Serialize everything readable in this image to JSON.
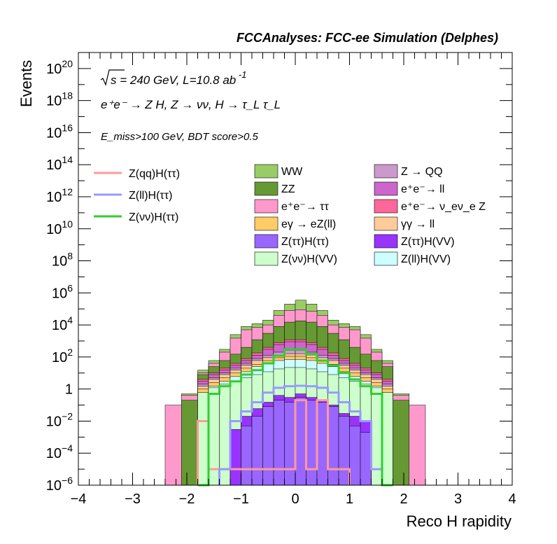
{
  "chart_data": {
    "type": "bar",
    "stacked": true,
    "title": "FCCAnalyses: FCC-ee Simulation (Delphes)",
    "annotations": {
      "sqrt_s": "s",
      "energy": "= 240 GeV, L=10.8 ab",
      "lumi_exp": "-1",
      "process": "e⁺e⁻ → Z H, Z → νν, H → τ_L τ_L",
      "selection": "E_miss>100 GeV, BDT score>0.5"
    },
    "xlabel": "Reco H rapidity",
    "ylabel": "Events",
    "xlim": [
      -4,
      4
    ],
    "ylim": [
      1e-06,
      1e+21
    ],
    "yscale": "log",
    "grid": false,
    "legend_placement": "top",
    "x_ticks": [
      "−4",
      "−3",
      "−2",
      "−1",
      "0",
      "1",
      "2",
      "3",
      "4"
    ],
    "y_ticks": [
      {
        "base": "10",
        "exp": "−6",
        "value": 1e-06
      },
      {
        "base": "10",
        "exp": "−4",
        "value": 0.0001
      },
      {
        "base": "10",
        "exp": "−2",
        "value": 0.01
      },
      {
        "base": "1",
        "exp": "",
        "value": 1
      },
      {
        "base": "10",
        "exp": "2",
        "value": 100.0
      },
      {
        "base": "10",
        "exp": "4",
        "value": 10000.0
      },
      {
        "base": "10",
        "exp": "6",
        "value": 1000000.0
      },
      {
        "base": "10",
        "exp": "8",
        "value": 100000000.0
      },
      {
        "base": "10",
        "exp": "10",
        "value": 10000000000.0
      },
      {
        "base": "10",
        "exp": "12",
        "value": 1000000000000.0
      },
      {
        "base": "10",
        "exp": "14",
        "value": 100000000000000.0
      },
      {
        "base": "10",
        "exp": "16",
        "value": 1e+16
      },
      {
        "base": "10",
        "exp": "18",
        "value": 1e+18
      },
      {
        "base": "10",
        "exp": "20",
        "value": 1e+20
      }
    ],
    "bin_edges": [
      -2.4,
      -2.1,
      -1.8,
      -1.6,
      -1.4,
      -1.2,
      -1.0,
      -0.8,
      -0.6,
      -0.4,
      -0.2,
      0.0,
      0.2,
      0.4,
      0.6,
      0.8,
      1.0,
      1.2,
      1.4,
      1.6,
      1.8,
      2.1,
      2.4
    ],
    "stack_order_bottom_to_top": [
      "Z(ττ)H(ττ)",
      "Z(ττ)H(VV)",
      "Z(νν)H(VV)",
      "Z(ll)H(VV)",
      "eγ → eZ(ll)",
      "γγ → ll",
      "Z → QQ",
      "e⁺e⁻ → ll",
      "e⁺e⁻ → ν_eν_e Z",
      "ZZ",
      "e⁺e⁻ → ττ",
      "WW"
    ],
    "stack_cumulative_tops": [
      {
        "name": "Z(ττ)H(ττ)",
        "values": [
          null,
          null,
          null,
          null,
          null,
          null,
          0.005,
          0.02,
          0.08,
          0.2,
          0.15,
          0.3,
          0.2,
          0.15,
          0.08,
          0.02,
          0.005,
          0.002,
          null,
          null,
          null,
          null
        ]
      },
      {
        "name": "Z(ττ)H(VV)",
        "values": [
          null,
          null,
          null,
          null,
          null,
          0.003,
          0.02,
          0.06,
          0.15,
          0.4,
          0.3,
          0.5,
          0.3,
          0.2,
          0.1,
          0.03,
          0.02,
          0.01,
          null,
          null,
          null,
          null
        ]
      },
      {
        "name": "Z(νν)H(VV)",
        "values": [
          null,
          null,
          0.6,
          1.2,
          2,
          3,
          5,
          8,
          12,
          18,
          22,
          22,
          18,
          12,
          8,
          5,
          3,
          2,
          1.2,
          0.6,
          null,
          null
        ]
      },
      {
        "name": "Z(ll)H(VV)",
        "values": [
          null,
          null,
          0.6,
          1.5,
          3,
          6,
          12,
          25,
          40,
          60,
          70,
          70,
          60,
          40,
          25,
          12,
          6,
          3,
          1.5,
          0.6,
          null,
          null
        ]
      },
      {
        "name": "eγ → eZ(ll)",
        "values": [
          null,
          null,
          1,
          2.5,
          5,
          10,
          20,
          35,
          60,
          90,
          110,
          110,
          90,
          60,
          35,
          20,
          10,
          5,
          2.5,
          1,
          null,
          null
        ]
      },
      {
        "name": "γγ → ll",
        "values": [
          null,
          null,
          1.5,
          4,
          8,
          15,
          30,
          60,
          90,
          130,
          160,
          160,
          130,
          90,
          60,
          30,
          15,
          8,
          4,
          1.5,
          null,
          null
        ]
      },
      {
        "name": "Z → QQ",
        "values": [
          null,
          null,
          2,
          5,
          10,
          20,
          40,
          80,
          130,
          200,
          260,
          260,
          200,
          130,
          80,
          40,
          20,
          10,
          5,
          2,
          null,
          null
        ]
      },
      {
        "name": "e⁺e⁻ → ll",
        "values": [
          null,
          null,
          3,
          8,
          15,
          30,
          60,
          130,
          300,
          600,
          900,
          900,
          600,
          300,
          130,
          60,
          30,
          15,
          8,
          3,
          null,
          null
        ]
      },
      {
        "name": "e⁺e⁻ → ν_eν_e Z",
        "values": [
          null,
          null,
          4,
          10,
          20,
          40,
          80,
          180,
          400,
          800,
          1200,
          1200,
          800,
          400,
          180,
          80,
          40,
          20,
          10,
          4,
          null,
          null
        ]
      },
      {
        "name": "ZZ",
        "values": [
          null,
          0.2,
          8,
          25,
          60,
          150,
          400,
          1200,
          3000,
          8000,
          15000,
          18000,
          15000,
          8000,
          3000,
          1200,
          400,
          150,
          60,
          25,
          0.2,
          null
        ]
      },
      {
        "name": "e⁺e⁻ → ττ",
        "values": [
          0.1,
          0.4,
          10,
          40,
          200,
          1500,
          5000,
          7000,
          10000,
          40000,
          80000,
          90000,
          70000,
          40000,
          10000,
          7000,
          5000,
          1500,
          200,
          40,
          0.4,
          0.1
        ]
      },
      {
        "name": "WW",
        "values": [
          null,
          0.5,
          15,
          60,
          300,
          2500,
          8000,
          12000,
          20000,
          80000,
          200000,
          350000,
          200000,
          80000,
          20000,
          12000,
          8000,
          2500,
          300,
          60,
          0.5,
          null
        ]
      }
    ],
    "series": [
      {
        "name": "Z(qq)H(ττ)",
        "values": [
          null,
          null,
          0.01,
          1e-05,
          1e-05,
          1e-05,
          1e-05,
          1e-05,
          1e-05,
          1e-05,
          1e-05,
          0.2,
          1e-05,
          0.2,
          1e-05,
          1e-05,
          null,
          null,
          null,
          null,
          null,
          null
        ]
      },
      {
        "name": "Z(ll)H(ττ)",
        "values": [
          null,
          null,
          null,
          null,
          1e-05,
          0.01,
          0.04,
          0.15,
          0.6,
          1.2,
          1.5,
          1.6,
          1.5,
          1.2,
          0.6,
          0.15,
          0.04,
          0.01,
          1e-05,
          null,
          null,
          null
        ]
      },
      {
        "name": "Z(νν)H(ττ)",
        "values": [
          null,
          null,
          1e-06,
          0.5,
          1.5,
          3,
          8,
          15,
          40,
          120,
          300,
          300,
          150,
          60,
          30,
          10,
          4,
          1.5,
          0.5,
          1e-06,
          null,
          null
        ]
      }
    ],
    "legend_lines": [
      {
        "label": "Z(qq)H(ττ)",
        "color": "#ff9999"
      },
      {
        "label": "Z(ll)H(ττ)",
        "color": "#9999ff"
      },
      {
        "label": "Z(νν)H(ττ)",
        "color": "#33cc33"
      }
    ],
    "legend_boxes": [
      {
        "label": "WW",
        "color": "#99cc66"
      },
      {
        "label": "Z → QQ",
        "color": "#cc99cc"
      },
      {
        "label": "ZZ",
        "color": "#669933"
      },
      {
        "label": "e⁺e⁻→ ll",
        "color": "#cc66cc"
      },
      {
        "label": "e⁺e⁻→ ττ",
        "color": "#ff99cc"
      },
      {
        "label": "e⁺e⁻→ ν_eν_e Z",
        "color": "#ff6699"
      },
      {
        "label": "eγ → eZ(ll)",
        "color": "#ffcc66"
      },
      {
        "label": "γγ → ll",
        "color": "#ffcc99"
      },
      {
        "label": "Z(ττ)H(ττ)",
        "color": "#9966ff"
      },
      {
        "label": "Z(ττ)H(VV)",
        "color": "#9933ff"
      },
      {
        "label": "Z(νν)H(VV)",
        "color": "#ccffcc"
      },
      {
        "label": "Z(ll)H(VV)",
        "color": "#ccffff"
      }
    ]
  }
}
